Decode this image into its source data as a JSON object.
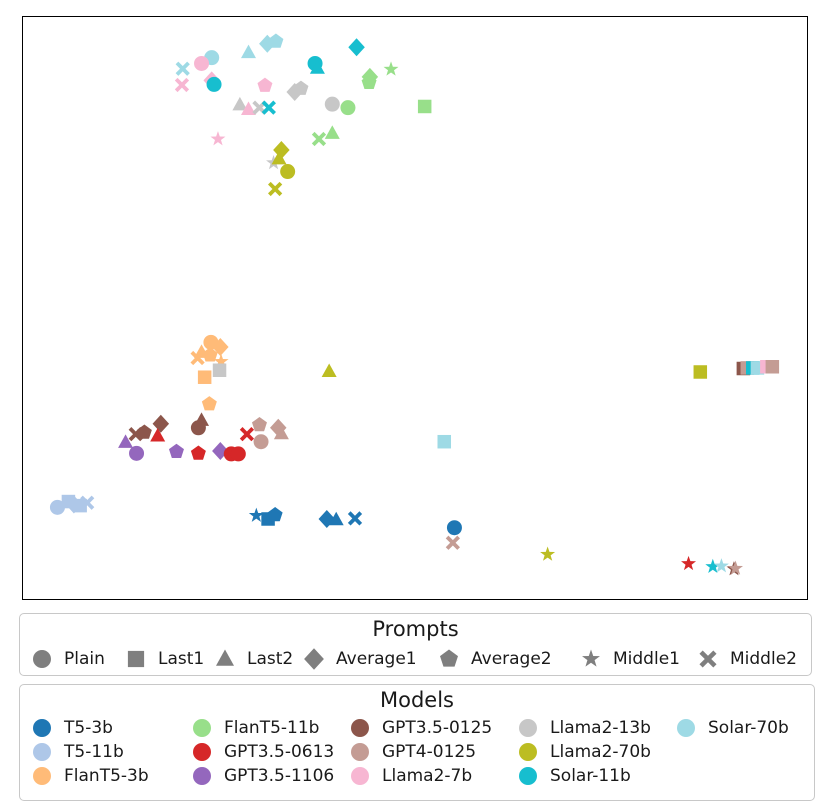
{
  "chart_data": {
    "type": "scatter",
    "title": "",
    "xlabel": "",
    "ylabel": "",
    "xlim": [
      0,
      100
    ],
    "ylim": [
      0,
      100
    ],
    "axis_ticks": "none",
    "grid": false,
    "prompts_legend": {
      "title": "Prompts",
      "placement": "below plot",
      "items": [
        {
          "name": "Plain",
          "marker": "circle"
        },
        {
          "name": "Last1",
          "marker": "square"
        },
        {
          "name": "Last2",
          "marker": "triangle"
        },
        {
          "name": "Average1",
          "marker": "diamond"
        },
        {
          "name": "Average2",
          "marker": "pentagon"
        },
        {
          "name": "Middle1",
          "marker": "star"
        },
        {
          "name": "Middle2",
          "marker": "x"
        }
      ]
    },
    "models_legend": {
      "title": "Models",
      "placement": "bottom",
      "items": [
        {
          "name": "T5-3b",
          "color": "#1f77b4"
        },
        {
          "name": "T5-11b",
          "color": "#aec7e8"
        },
        {
          "name": "FlanT5-3b",
          "color": "#ffbb78"
        },
        {
          "name": "FlanT5-11b",
          "color": "#98df8a"
        },
        {
          "name": "GPT3.5-0613",
          "color": "#d62728"
        },
        {
          "name": "GPT3.5-1106",
          "color": "#9467bd"
        },
        {
          "name": "GPT3.5-0125",
          "color": "#8c564b"
        },
        {
          "name": "GPT4-0125",
          "color": "#c49c94"
        },
        {
          "name": "Llama2-7b",
          "color": "#f7b6d2"
        },
        {
          "name": "Llama2-13b",
          "color": "#c7c7c7"
        },
        {
          "name": "Llama2-70b",
          "color": "#bcbd22"
        },
        {
          "name": "Solar-11b",
          "color": "#17becf"
        },
        {
          "name": "Solar-70b",
          "color": "#9edae5"
        }
      ]
    },
    "points": [
      {
        "model": "Solar-70b",
        "prompt": "Plain",
        "x": 24.1,
        "y": 93.0
      },
      {
        "model": "Llama2-7b",
        "prompt": "Plain",
        "x": 22.8,
        "y": 92.0
      },
      {
        "model": "Solar-70b",
        "prompt": "Last2",
        "x": 28.8,
        "y": 93.9
      },
      {
        "model": "Solar-70b",
        "prompt": "Average1",
        "x": 31.2,
        "y": 95.4
      },
      {
        "model": "Solar-70b",
        "prompt": "Average2",
        "x": 32.3,
        "y": 95.8
      },
      {
        "model": "Solar-11b",
        "prompt": "Average1",
        "x": 42.6,
        "y": 94.8
      },
      {
        "model": "Solar-11b",
        "prompt": "Plain",
        "x": 37.3,
        "y": 92.0
      },
      {
        "model": "Solar-11b",
        "prompt": "Last2",
        "x": 37.6,
        "y": 91.2
      },
      {
        "model": "FlanT5-11b",
        "prompt": "Middle1",
        "x": 47.0,
        "y": 91.0
      },
      {
        "model": "FlanT5-11b",
        "prompt": "Average1",
        "x": 44.3,
        "y": 89.7
      },
      {
        "model": "FlanT5-11b",
        "prompt": "Average2",
        "x": 44.2,
        "y": 88.7
      },
      {
        "model": "Solar-70b",
        "prompt": "Middle2",
        "x": 20.4,
        "y": 91.1
      },
      {
        "model": "Llama2-7b",
        "prompt": "Middle2",
        "x": 20.3,
        "y": 88.3
      },
      {
        "model": "Llama2-7b",
        "prompt": "Average1",
        "x": 24.1,
        "y": 89.1
      },
      {
        "model": "Solar-11b",
        "prompt": "Plain",
        "x": 24.4,
        "y": 88.4
      },
      {
        "model": "Llama2-7b",
        "prompt": "Average2",
        "x": 30.9,
        "y": 88.2
      },
      {
        "model": "Llama2-13b",
        "prompt": "Average2",
        "x": 35.5,
        "y": 87.7
      },
      {
        "model": "Llama2-13b",
        "prompt": "Average1",
        "x": 34.7,
        "y": 87.1
      },
      {
        "model": "Llama2-13b",
        "prompt": "Plain",
        "x": 39.5,
        "y": 85.0
      },
      {
        "model": "FlanT5-11b",
        "prompt": "Plain",
        "x": 41.5,
        "y": 84.4
      },
      {
        "model": "FlanT5-11b",
        "prompt": "Last1",
        "x": 51.3,
        "y": 84.6
      },
      {
        "model": "Llama2-13b",
        "prompt": "Last2",
        "x": 27.7,
        "y": 84.9
      },
      {
        "model": "Llama2-7b",
        "prompt": "Last2",
        "x": 28.8,
        "y": 84.1
      },
      {
        "model": "Llama2-13b",
        "prompt": "Middle2",
        "x": 30.2,
        "y": 84.4
      },
      {
        "model": "Solar-11b",
        "prompt": "Middle2",
        "x": 31.4,
        "y": 84.4
      },
      {
        "model": "FlanT5-11b",
        "prompt": "Last2",
        "x": 39.5,
        "y": 80.0
      },
      {
        "model": "FlanT5-11b",
        "prompt": "Middle2",
        "x": 37.8,
        "y": 79.0
      },
      {
        "model": "Llama2-7b",
        "prompt": "Middle1",
        "x": 24.9,
        "y": 79.0
      },
      {
        "model": "Llama2-70b",
        "prompt": "Average1",
        "x": 33.0,
        "y": 77.1
      },
      {
        "model": "Llama2-13b",
        "prompt": "Middle1",
        "x": 32.0,
        "y": 74.9
      },
      {
        "model": "Llama2-70b",
        "prompt": "Last2",
        "x": 32.7,
        "y": 75.6
      },
      {
        "model": "Llama2-70b",
        "prompt": "Plain",
        "x": 33.8,
        "y": 73.4
      },
      {
        "model": "Llama2-70b",
        "prompt": "Middle2",
        "x": 32.2,
        "y": 70.4
      },
      {
        "model": "FlanT5-3b",
        "prompt": "Plain",
        "x": 24.0,
        "y": 44.0
      },
      {
        "model": "FlanT5-3b",
        "prompt": "Average1",
        "x": 25.2,
        "y": 43.2
      },
      {
        "model": "FlanT5-3b",
        "prompt": "Average2",
        "x": 23.9,
        "y": 41.8
      },
      {
        "model": "FlanT5-3b",
        "prompt": "Last2",
        "x": 22.8,
        "y": 42.3
      },
      {
        "model": "FlanT5-3b",
        "prompt": "Middle2",
        "x": 22.3,
        "y": 41.3
      },
      {
        "model": "FlanT5-3b",
        "prompt": "Middle1",
        "x": 25.3,
        "y": 40.7
      },
      {
        "model": "Llama2-13b",
        "prompt": "Last1",
        "x": 25.1,
        "y": 39.2
      },
      {
        "model": "FlanT5-3b",
        "prompt": "Last1",
        "x": 23.2,
        "y": 38.0
      },
      {
        "model": "Llama2-70b",
        "prompt": "Last2",
        "x": 39.1,
        "y": 39.0
      },
      {
        "model": "FlanT5-3b",
        "prompt": "Average2",
        "x": 23.8,
        "y": 33.4
      },
      {
        "model": "Llama2-70b",
        "prompt": "Last1",
        "x": 86.5,
        "y": 38.9
      },
      {
        "model": "GPT3.5-0125",
        "prompt": "Last1",
        "x": 92.0,
        "y": 39.5
      },
      {
        "model": "GPT4-0125",
        "prompt": "Last1",
        "x": 92.5,
        "y": 39.6
      },
      {
        "model": "Solar-11b",
        "prompt": "Last1",
        "x": 93.2,
        "y": 39.6
      },
      {
        "model": "Solar-70b",
        "prompt": "Last1",
        "x": 93.8,
        "y": 39.6
      },
      {
        "model": "Llama2-7b",
        "prompt": "Last1",
        "x": 95.0,
        "y": 39.8
      },
      {
        "model": "GPT4-0125",
        "prompt": "Last1",
        "x": 95.7,
        "y": 39.8
      },
      {
        "model": "GPT3.5-0125",
        "prompt": "Average1",
        "x": 17.6,
        "y": 30.0
      },
      {
        "model": "GPT3.5-0125",
        "prompt": "Middle2",
        "x": 14.4,
        "y": 28.2
      },
      {
        "model": "GPT3.5-0125",
        "prompt": "Average2",
        "x": 15.5,
        "y": 28.5
      },
      {
        "model": "GPT3.5-0125",
        "prompt": "Plain",
        "x": 22.4,
        "y": 29.3
      },
      {
        "model": "GPT3.5-0125",
        "prompt": "Last2",
        "x": 22.8,
        "y": 30.6
      },
      {
        "model": "GPT3.5-0613",
        "prompt": "Last2",
        "x": 17.2,
        "y": 27.9
      },
      {
        "model": "GPT3.5-1106",
        "prompt": "Last2",
        "x": 13.1,
        "y": 26.8
      },
      {
        "model": "GPT3.5-1106",
        "prompt": "Plain",
        "x": 14.5,
        "y": 24.9
      },
      {
        "model": "GPT3.5-1106",
        "prompt": "Average2",
        "x": 19.6,
        "y": 25.2
      },
      {
        "model": "GPT3.5-0613",
        "prompt": "Average2",
        "x": 22.4,
        "y": 24.9
      },
      {
        "model": "GPT3.5-1106",
        "prompt": "Average1",
        "x": 25.2,
        "y": 25.3
      },
      {
        "model": "GPT3.5-0613",
        "prompt": "Plain",
        "x": 26.6,
        "y": 24.8
      },
      {
        "model": "GPT3.5-0613",
        "prompt": "Plain",
        "x": 27.5,
        "y": 24.8
      },
      {
        "model": "GPT3.5-0613",
        "prompt": "Middle2",
        "x": 28.6,
        "y": 28.2
      },
      {
        "model": "GPT4-0125",
        "prompt": "Average2",
        "x": 30.2,
        "y": 29.8
      },
      {
        "model": "GPT4-0125",
        "prompt": "Plain",
        "x": 30.4,
        "y": 26.9
      },
      {
        "model": "GPT4-0125",
        "prompt": "Average1",
        "x": 32.6,
        "y": 29.3
      },
      {
        "model": "GPT4-0125",
        "prompt": "Last2",
        "x": 33.0,
        "y": 28.3
      },
      {
        "model": "Solar-70b",
        "prompt": "Last1",
        "x": 53.8,
        "y": 26.9
      },
      {
        "model": "T5-11b",
        "prompt": "Plain",
        "x": 4.4,
        "y": 15.6
      },
      {
        "model": "T5-11b",
        "prompt": "Last1",
        "x": 5.8,
        "y": 16.6
      },
      {
        "model": "T5-11b",
        "prompt": "Average1",
        "x": 6.5,
        "y": 16.1
      },
      {
        "model": "T5-11b",
        "prompt": "Middle2",
        "x": 8.2,
        "y": 16.4
      },
      {
        "model": "T5-11b",
        "prompt": "Last1",
        "x": 7.3,
        "y": 15.9
      },
      {
        "model": "T5-3b",
        "prompt": "Middle1",
        "x": 29.8,
        "y": 14.2
      },
      {
        "model": "T5-3b",
        "prompt": "Last1",
        "x": 31.3,
        "y": 13.6
      },
      {
        "model": "T5-3b",
        "prompt": "Average2",
        "x": 32.2,
        "y": 14.3
      },
      {
        "model": "T5-3b",
        "prompt": "Average1",
        "x": 38.8,
        "y": 13.6
      },
      {
        "model": "T5-3b",
        "prompt": "Last2",
        "x": 40.0,
        "y": 13.5
      },
      {
        "model": "T5-3b",
        "prompt": "Middle2",
        "x": 42.4,
        "y": 13.7
      },
      {
        "model": "T5-3b",
        "prompt": "Plain",
        "x": 55.1,
        "y": 12.1
      },
      {
        "model": "GPT4-0125",
        "prompt": "Middle2",
        "x": 54.9,
        "y": 9.5
      },
      {
        "model": "Llama2-70b",
        "prompt": "Middle1",
        "x": 67.0,
        "y": 7.5
      },
      {
        "model": "GPT3.5-0613",
        "prompt": "Middle1",
        "x": 85.0,
        "y": 5.9
      },
      {
        "model": "Solar-11b",
        "prompt": "Middle1",
        "x": 88.1,
        "y": 5.4
      },
      {
        "model": "Solar-70b",
        "prompt": "Middle1",
        "x": 89.2,
        "y": 5.5
      },
      {
        "model": "GPT3.5-0125",
        "prompt": "Middle1",
        "x": 90.8,
        "y": 5.0
      },
      {
        "model": "GPT4-0125",
        "prompt": "Middle1",
        "x": 91.0,
        "y": 5.1
      }
    ]
  }
}
